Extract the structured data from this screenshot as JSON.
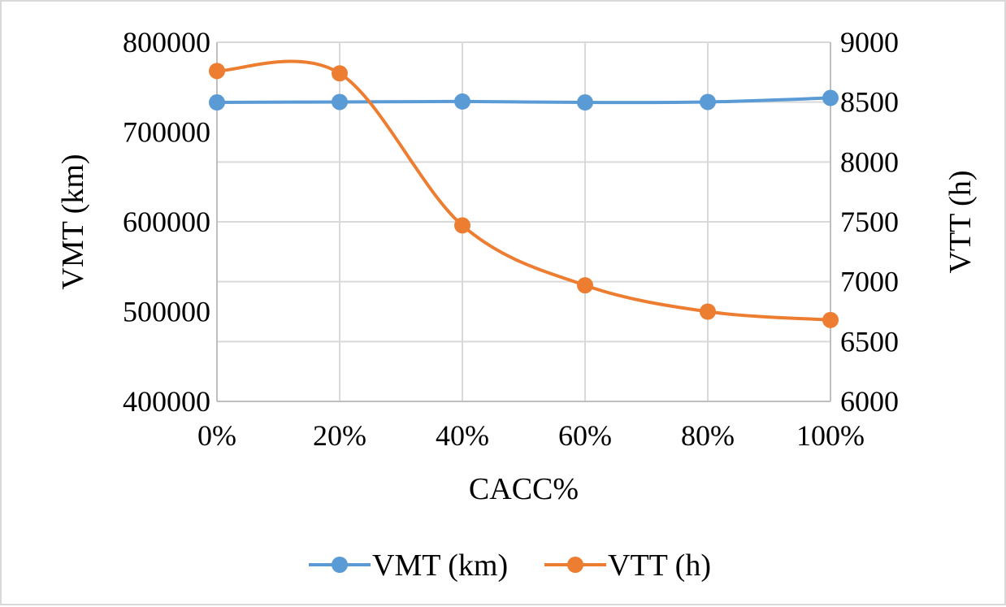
{
  "chart_data": {
    "type": "line",
    "categories": [
      "0%",
      "20%",
      "40%",
      "60%",
      "80%",
      "100%"
    ],
    "xlabel": "CACC%",
    "ylabel": "VMT (km)",
    "y2label": "VTT (h)",
    "ylim": [
      400000,
      800000
    ],
    "y2lim": [
      6000,
      9000
    ],
    "yticks": [
      "400000",
      "500000",
      "600000",
      "700000",
      "800000"
    ],
    "y2ticks": [
      "6000",
      "6500",
      "7000",
      "7500",
      "8000",
      "8500",
      "9000"
    ],
    "grid": true,
    "smooth": true,
    "legend_position": "bottom",
    "series": [
      {
        "name": "VMT (km)",
        "axis": "left",
        "color": "#5b9bd5",
        "values": [
          733000,
          733500,
          734000,
          733000,
          733500,
          738000
        ]
      },
      {
        "name": "VTT (h)",
        "axis": "right",
        "color": "#ed7d31",
        "values": [
          8760,
          8740,
          7470,
          6970,
          6750,
          6680
        ]
      }
    ]
  }
}
